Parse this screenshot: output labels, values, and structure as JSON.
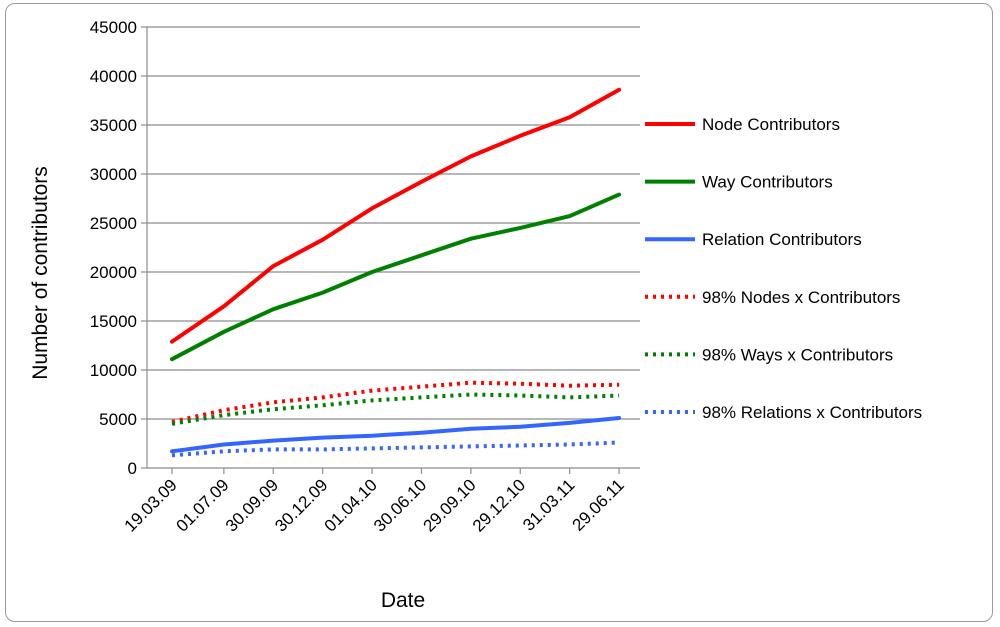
{
  "chart_data": {
    "type": "line",
    "title": "",
    "xlabel": "Date",
    "ylabel": "Number of contributors",
    "ylim": [
      0,
      45000
    ],
    "yticks": [
      0,
      5000,
      10000,
      15000,
      20000,
      25000,
      30000,
      35000,
      40000,
      45000
    ],
    "yticks_labels": [
      "0",
      "5000",
      "10000",
      "15000",
      "20000",
      "25000",
      "30000",
      "35000",
      "40000",
      "45000"
    ],
    "grid": "horizontal",
    "legend_position": "right",
    "categories": [
      "19.03.09",
      "01.07.09",
      "30.09.09",
      "30.12.09",
      "01.04.10",
      "30.06.10",
      "29.09.10",
      "29.12.10",
      "31.03.11",
      "29.06.11"
    ],
    "x": [
      0,
      1.05,
      2.05,
      3.05,
      4.05,
      5.05,
      6.05,
      7.05,
      8.05,
      9.05
    ],
    "series": [
      {
        "name": "Node Contributors",
        "color": "#ff0000",
        "dash": "solid",
        "values": [
          12900,
          16500,
          20600,
          23300,
          26500,
          29200,
          31800,
          33900,
          35800,
          38600
        ]
      },
      {
        "name": "Way Contributors",
        "color": "#008000",
        "dash": "solid",
        "values": [
          11100,
          13900,
          16200,
          17900,
          20000,
          21700,
          23400,
          24500,
          25700,
          27900
        ]
      },
      {
        "name": "Relation Contributors",
        "color": "#3366ff",
        "dash": "solid",
        "values": [
          1700,
          2400,
          2800,
          3100,
          3300,
          3600,
          4000,
          4200,
          4600,
          5100
        ]
      },
      {
        "name": "98% Nodes x Contributors",
        "color": "#ff0000",
        "dash": "dotted",
        "values": [
          4700,
          5900,
          6700,
          7200,
          7900,
          8300,
          8700,
          8600,
          8400,
          8500
        ]
      },
      {
        "name": "98% Ways x Contributors",
        "color": "#008000",
        "dash": "dotted",
        "values": [
          4500,
          5400,
          6000,
          6400,
          6900,
          7200,
          7500,
          7400,
          7200,
          7400
        ]
      },
      {
        "name": "98% Relations x Contributors",
        "color": "#3366ff",
        "dash": "dotted",
        "values": [
          1300,
          1700,
          1900,
          1900,
          2000,
          2100,
          2200,
          2300,
          2400,
          2600
        ]
      }
    ]
  }
}
